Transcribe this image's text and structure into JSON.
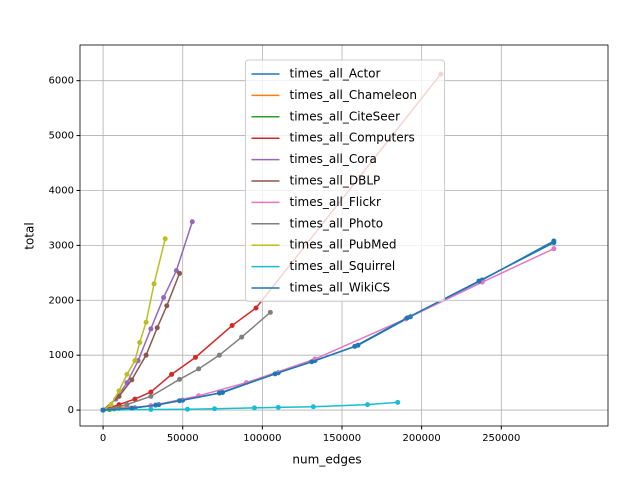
{
  "chart_data": {
    "type": "line",
    "xlabel": "num_edges",
    "ylabel": "total",
    "xlim": [
      -14500,
      317000
    ],
    "ylim": [
      -290,
      6650
    ],
    "xticks": [
      0,
      50000,
      100000,
      150000,
      200000,
      250000
    ],
    "yticks": [
      0,
      1000,
      2000,
      3000,
      4000,
      5000,
      6000
    ],
    "grid": true,
    "legend": "upper center",
    "series": [
      {
        "name": "times_all_Actor",
        "color": "#1f77b4",
        "x": [
          0,
          20000,
          35000,
          50000,
          75000,
          110000,
          133000,
          160000,
          193000,
          238000,
          283000
        ],
        "values": [
          0,
          40,
          100,
          180,
          320,
          680,
          900,
          1180,
          1700,
          2370,
          3080
        ]
      },
      {
        "name": "times_all_Chameleon",
        "color": "#ff7f0e",
        "x": [
          0,
          5000,
          10000,
          15000
        ],
        "values": [
          0,
          20,
          40,
          60
        ]
      },
      {
        "name": "times_all_CiteSeer",
        "color": "#2ca02c",
        "x": [
          0,
          4000,
          7000,
          10000
        ],
        "values": [
          0,
          10,
          20,
          30
        ]
      },
      {
        "name": "times_all_Computers",
        "color": "#d62728",
        "x": [
          0,
          10000,
          20000,
          30000,
          43000,
          58000,
          81000,
          96000,
          212000
        ],
        "values": [
          0,
          100,
          200,
          330,
          650,
          960,
          1540,
          1860,
          6120
        ]
      },
      {
        "name": "times_all_Cora",
        "color": "#9467bd",
        "x": [
          0,
          8000,
          15000,
          22000,
          30000,
          38000,
          46000,
          56000
        ],
        "values": [
          0,
          200,
          500,
          900,
          1480,
          2050,
          2540,
          3430
        ]
      },
      {
        "name": "times_all_DBLP",
        "color": "#8c564b",
        "x": [
          0,
          10000,
          18000,
          27000,
          34000,
          40000,
          48000
        ],
        "values": [
          0,
          250,
          550,
          1000,
          1500,
          1900,
          2490
        ]
      },
      {
        "name": "times_all_Flickr",
        "color": "#e377c2",
        "x": [
          0,
          30000,
          60000,
          90000,
          133000,
          190000,
          238000,
          283000
        ],
        "values": [
          0,
          80,
          260,
          500,
          930,
          1660,
          2330,
          2940
        ]
      },
      {
        "name": "times_all_Photo",
        "color": "#7f7f7f",
        "x": [
          0,
          15000,
          30000,
          48000,
          60000,
          73000,
          87000,
          105000
        ],
        "values": [
          0,
          100,
          250,
          560,
          750,
          1000,
          1330,
          1780
        ]
      },
      {
        "name": "times_all_PubMed",
        "color": "#bcbd22",
        "x": [
          0,
          5000,
          10000,
          15000,
          20000,
          23000,
          27000,
          32000,
          39000
        ],
        "values": [
          0,
          100,
          350,
          650,
          900,
          1230,
          1600,
          2300,
          3120
        ]
      },
      {
        "name": "times_all_Squirrel",
        "color": "#17becf",
        "x": [
          0,
          30000,
          53000,
          70000,
          95000,
          110000,
          132000,
          166000,
          185000
        ],
        "values": [
          0,
          10,
          15,
          25,
          40,
          50,
          60,
          100,
          140
        ]
      },
      {
        "name": "times_all_WikiCS",
        "color": "#1f77b4",
        "x": [
          0,
          18000,
          33000,
          48000,
          73000,
          108000,
          131000,
          158000,
          191000,
          236000,
          283000
        ],
        "values": [
          0,
          35,
          90,
          170,
          310,
          660,
          880,
          1160,
          1680,
          2350,
          3050
        ]
      }
    ]
  }
}
